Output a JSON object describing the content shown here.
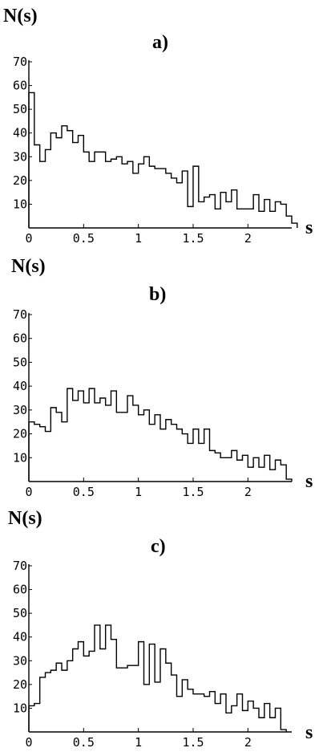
{
  "chart_data": [
    {
      "type": "bar",
      "panel_label": "a)",
      "ylabel": "N(s)",
      "xlabel": "s",
      "xlim": [
        0,
        2.4
      ],
      "ylim": [
        0,
        70
      ],
      "xticks": [
        "0",
        "0.5",
        "1",
        "1.5",
        "2"
      ],
      "xtick_values": [
        0,
        0.5,
        1,
        1.5,
        2
      ],
      "yticks": [
        "10",
        "20",
        "30",
        "40",
        "50",
        "60",
        "70"
      ],
      "bin_width": 0.05,
      "x_start": 0,
      "values": [
        57,
        35,
        28,
        33,
        40,
        38,
        43,
        41,
        36,
        39,
        32,
        28,
        32,
        32,
        28,
        29,
        30,
        27,
        28,
        23,
        27,
        30,
        26,
        25,
        25,
        23,
        21,
        19,
        24,
        9,
        26,
        11,
        13,
        14,
        8,
        15,
        11,
        16,
        8,
        8,
        8,
        14,
        7,
        12,
        7,
        11,
        10,
        5,
        2
      ]
    },
    {
      "type": "bar",
      "panel_label": "b)",
      "ylabel": "N(s)",
      "xlabel": "s",
      "xlim": [
        0,
        2.4
      ],
      "ylim": [
        0,
        70
      ],
      "xticks": [
        "0",
        "0.5",
        "1",
        "1.5",
        "2"
      ],
      "xtick_values": [
        0,
        0.5,
        1,
        1.5,
        2
      ],
      "yticks": [
        "10",
        "20",
        "30",
        "40",
        "50",
        "60",
        "70"
      ],
      "bin_width": 0.05,
      "x_start": 0,
      "values": [
        25,
        24,
        23,
        21,
        31,
        29,
        25,
        39,
        34,
        38,
        33,
        39,
        33,
        35,
        32,
        38,
        29,
        29,
        36,
        32,
        28,
        30,
        24,
        28,
        22,
        26,
        24,
        22,
        20,
        16,
        22,
        16,
        22,
        13,
        12,
        10,
        10,
        13,
        9,
        11,
        6,
        10,
        6,
        11,
        5,
        9,
        7,
        1
      ]
    },
    {
      "type": "bar",
      "panel_label": "c)",
      "ylabel": "N(s)",
      "xlabel": "s",
      "xlim": [
        0,
        2.4
      ],
      "ylim": [
        0,
        70
      ],
      "xticks": [
        "0",
        "0.5",
        "1",
        "1.5",
        "2"
      ],
      "xtick_values": [
        0,
        0.5,
        1,
        1.5,
        2
      ],
      "yticks": [
        "10",
        "20",
        "30",
        "40",
        "50",
        "60",
        "70"
      ],
      "bin_width": 0.05,
      "x_start": 0,
      "values": [
        11,
        12,
        23,
        25,
        26,
        29,
        26,
        30,
        35,
        38,
        32,
        34,
        45,
        35,
        45,
        39,
        27,
        27,
        28,
        28,
        38,
        20,
        37,
        21,
        35,
        29,
        24,
        15,
        22,
        18,
        16,
        16,
        15,
        17,
        12,
        16,
        8,
        11,
        16,
        9,
        13,
        10,
        6,
        12,
        6,
        10,
        1
      ]
    }
  ]
}
